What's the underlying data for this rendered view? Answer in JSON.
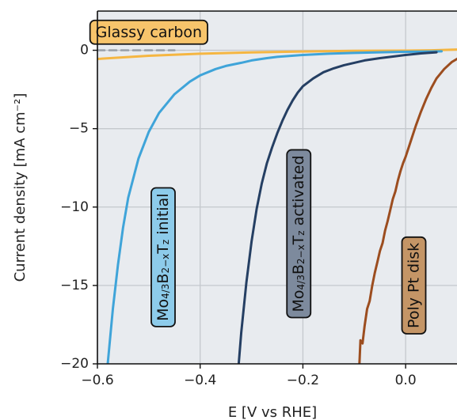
{
  "chart_data": {
    "type": "line",
    "title": "",
    "xlabel": "E [V vs RHE]",
    "ylabel": "Current density [mA cm⁻²]",
    "xlim": [
      -0.6,
      0.1
    ],
    "ylim": [
      -20,
      2.5
    ],
    "xticks": [
      -0.6,
      -0.4,
      -0.2,
      0.0
    ],
    "xtick_labels": [
      "−0.6",
      "−0.4",
      "−0.2",
      "0.0"
    ],
    "yticks": [
      0,
      -5,
      -10,
      -15,
      -20
    ],
    "ytick_labels": [
      "0",
      "−5",
      "−10",
      "−15",
      "−20"
    ],
    "grid": true,
    "background": "#e8ebef",
    "series": [
      {
        "key": "glassy",
        "color": "#f5b642",
        "x": [
          -0.6,
          -0.5,
          -0.4,
          -0.3,
          -0.2,
          -0.1,
          0.0,
          0.05,
          0.1
        ],
        "y": [
          -0.55,
          -0.35,
          -0.22,
          -0.14,
          -0.08,
          -0.04,
          -0.02,
          0.0,
          0.05
        ]
      },
      {
        "key": "glassy-extension",
        "color": "#9aa1a9",
        "dashed": true,
        "x": [
          -0.6,
          -0.5,
          -0.45
        ],
        "y": [
          0.0,
          0.0,
          0.0
        ]
      },
      {
        "key": "initial",
        "color": "#3fa4d9",
        "x": [
          -0.58,
          -0.57,
          -0.56,
          -0.55,
          -0.54,
          -0.52,
          -0.5,
          -0.48,
          -0.45,
          -0.42,
          -0.4,
          -0.37,
          -0.35,
          -0.32,
          -0.3,
          -0.27,
          -0.25,
          -0.2,
          -0.15,
          -0.1,
          -0.05,
          0.0,
          0.05,
          0.07
        ],
        "y": [
          -20,
          -16.5,
          -13.7,
          -11.3,
          -9.4,
          -6.9,
          -5.2,
          -4.0,
          -2.8,
          -2.0,
          -1.6,
          -1.2,
          -1.0,
          -0.8,
          -0.65,
          -0.5,
          -0.42,
          -0.3,
          -0.22,
          -0.17,
          -0.13,
          -0.1,
          -0.08,
          -0.07
        ]
      },
      {
        "key": "activated",
        "color": "#253f63",
        "x": [
          -0.325,
          -0.32,
          -0.31,
          -0.3,
          -0.29,
          -0.28,
          -0.27,
          -0.26,
          -0.25,
          -0.24,
          -0.23,
          -0.22,
          -0.21,
          -0.2,
          -0.18,
          -0.16,
          -0.14,
          -0.12,
          -0.1,
          -0.08,
          -0.05,
          -0.02,
          0.0,
          0.03,
          0.06
        ],
        "y": [
          -20,
          -18.0,
          -14.8,
          -12.2,
          -10.1,
          -8.5,
          -7.2,
          -6.2,
          -5.3,
          -4.5,
          -3.8,
          -3.2,
          -2.7,
          -2.3,
          -1.8,
          -1.4,
          -1.15,
          -0.95,
          -0.8,
          -0.65,
          -0.5,
          -0.38,
          -0.3,
          -0.2,
          -0.13
        ]
      },
      {
        "key": "pt",
        "color": "#9c4d1f",
        "x": [
          -0.09,
          -0.088,
          -0.084,
          -0.08,
          -0.075,
          -0.07,
          -0.065,
          -0.06,
          -0.055,
          -0.05,
          -0.045,
          -0.04,
          -0.035,
          -0.03,
          -0.025,
          -0.02,
          -0.015,
          -0.01,
          -0.005,
          0.0,
          0.01,
          0.02,
          0.03,
          0.04,
          0.05,
          0.06,
          0.075,
          0.09,
          0.1
        ],
        "y": [
          -20,
          -18.5,
          -18.7,
          -17.6,
          -16.5,
          -16.0,
          -15.0,
          -14.2,
          -13.5,
          -12.8,
          -12.3,
          -11.5,
          -10.9,
          -10.2,
          -9.5,
          -9.0,
          -8.3,
          -7.7,
          -7.2,
          -6.8,
          -5.8,
          -4.8,
          -3.9,
          -3.1,
          -2.4,
          -1.8,
          -1.2,
          -0.75,
          -0.55
        ]
      }
    ],
    "annotations": [
      {
        "key": "glassy",
        "text": "Glassy carbon",
        "fill": "#f7c46b",
        "rotate": 0,
        "anchor_x": -0.5,
        "anchor_y": 1.15
      },
      {
        "key": "initial",
        "parts": [
          {
            "t": "Mo",
            "sub": false
          },
          {
            "t": "4/3",
            "sub": true
          },
          {
            "t": "B",
            "sub": false
          },
          {
            "t": "2−x",
            "sub": true
          },
          {
            "t": "T",
            "sub": false
          },
          {
            "t": "z",
            "sub": true
          },
          {
            "t": " initial",
            "sub": false
          }
        ],
        "fill": "#8dcbea",
        "rotate": -90,
        "anchor_x": -0.472,
        "anchor_y": -13.2
      },
      {
        "key": "activated",
        "parts": [
          {
            "t": "Mo",
            "sub": false
          },
          {
            "t": "4/3",
            "sub": true
          },
          {
            "t": "B",
            "sub": false
          },
          {
            "t": "2−x",
            "sub": true
          },
          {
            "t": "T",
            "sub": false
          },
          {
            "t": "z",
            "sub": true
          },
          {
            "t": " activated",
            "sub": false
          }
        ],
        "fill": "#7d8a9d",
        "rotate": -90,
        "anchor_x": -0.208,
        "anchor_y": -11.7
      },
      {
        "key": "pt",
        "text": "Poly Pt disk",
        "fill": "#c49566",
        "rotate": -90,
        "anchor_x": 0.016,
        "anchor_y": -15.0
      }
    ]
  }
}
